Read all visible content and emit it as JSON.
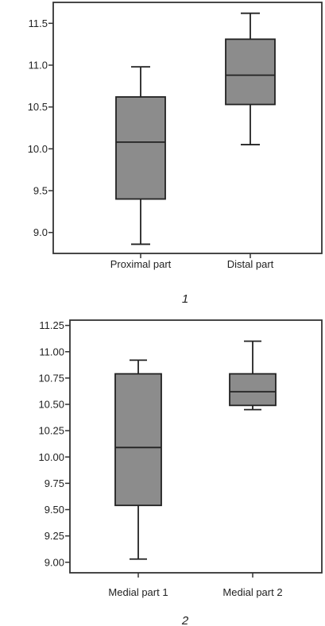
{
  "chart_data": [
    {
      "type": "boxplot",
      "panel_label": "1",
      "categories": [
        "Proximal part",
        "Distal part"
      ],
      "boxes": [
        {
          "category": "Proximal part",
          "whisker_low": 8.86,
          "q1": 9.4,
          "median": 10.08,
          "q3": 10.62,
          "whisker_high": 10.98
        },
        {
          "category": "Distal part",
          "whisker_low": 10.05,
          "q1": 10.53,
          "median": 10.88,
          "q3": 11.31,
          "whisker_high": 11.62
        }
      ],
      "ylim": [
        8.75,
        11.75
      ],
      "yticks": [
        9.0,
        9.5,
        10.0,
        10.5,
        11.0,
        11.5
      ],
      "ytick_labels": [
        "9.0",
        "9.5",
        "10.0",
        "10.5",
        "11.0",
        "11.5"
      ],
      "box_color": "#8c8c8c",
      "grid": false
    },
    {
      "type": "boxplot",
      "panel_label": "2",
      "categories": [
        "Medial part 1",
        "Medial part 2"
      ],
      "boxes": [
        {
          "category": "Medial part 1",
          "whisker_low": 9.03,
          "q1": 9.54,
          "median": 10.09,
          "q3": 10.79,
          "whisker_high": 10.92
        },
        {
          "category": "Medial part 2",
          "whisker_low": 10.45,
          "q1": 10.49,
          "median": 10.62,
          "q3": 10.79,
          "whisker_high": 11.1
        }
      ],
      "ylim": [
        8.9,
        11.3
      ],
      "yticks": [
        9.0,
        9.25,
        9.5,
        9.75,
        10.0,
        10.25,
        10.5,
        10.75,
        11.0,
        11.25
      ],
      "ytick_labels": [
        "9.00",
        "9.25",
        "9.50",
        "9.75",
        "10.00",
        "10.25",
        "10.50",
        "10.75",
        "11.00",
        "11.25"
      ],
      "box_color": "#8c8c8c",
      "grid": false
    }
  ]
}
